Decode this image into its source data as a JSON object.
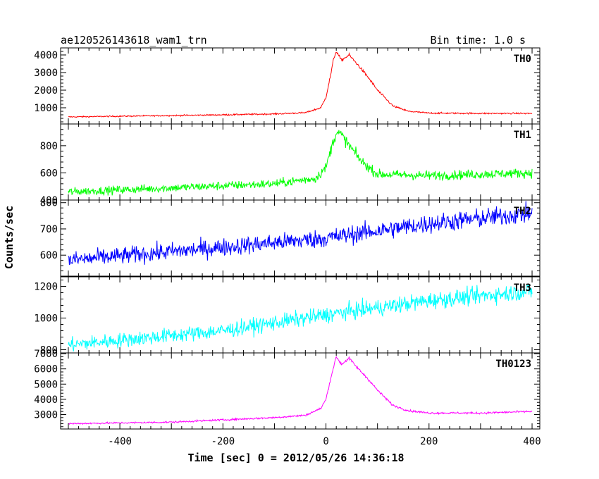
{
  "header": {
    "title": "ae120526143618_wam1_trn",
    "bin_time": "Bin time: 1.0 s"
  },
  "chart_data": {
    "type": "line",
    "xlabel": "Time [sec] 0 = 2012/05/26 14:36:18",
    "ylabel": "Counts/sec",
    "xlim": [
      -515,
      415
    ],
    "xticks": [
      -400,
      -200,
      0,
      200,
      400
    ],
    "grid": false,
    "panels": [
      {
        "name": "TH0",
        "color": "#ff0000",
        "ylim": [
          80,
          4400
        ],
        "yticks": [
          1000,
          2000,
          3000,
          4000
        ],
        "points": [
          [
            -500,
            480
          ],
          [
            -400,
            520
          ],
          [
            -300,
            560
          ],
          [
            -200,
            600
          ],
          [
            -100,
            650
          ],
          [
            -40,
            720
          ],
          [
            -10,
            1000
          ],
          [
            0,
            1600
          ],
          [
            10,
            3000
          ],
          [
            15,
            3800
          ],
          [
            20,
            4200
          ],
          [
            30,
            3700
          ],
          [
            45,
            4000
          ],
          [
            60,
            3500
          ],
          [
            80,
            2800
          ],
          [
            100,
            2000
          ],
          [
            130,
            1100
          ],
          [
            160,
            800
          ],
          [
            200,
            700
          ],
          [
            300,
            680
          ],
          [
            400,
            680
          ]
        ],
        "noise": 35
      },
      {
        "name": "TH1",
        "color": "#00ff00",
        "ylim": [
          400,
          960
        ],
        "yticks": [
          400,
          600,
          800
        ],
        "points": [
          [
            -500,
            460
          ],
          [
            -300,
            490
          ],
          [
            -100,
            520
          ],
          [
            -20,
            560
          ],
          [
            0,
            640
          ],
          [
            10,
            780
          ],
          [
            20,
            900
          ],
          [
            30,
            880
          ],
          [
            45,
            800
          ],
          [
            70,
            680
          ],
          [
            100,
            590
          ],
          [
            200,
            580
          ],
          [
            300,
            590
          ],
          [
            400,
            600
          ]
        ],
        "noise": 30
      },
      {
        "name": "TH2",
        "color": "#0000ff",
        "ylim": [
          520,
          810
        ],
        "yticks": [
          600,
          700,
          800
        ],
        "points": [
          [
            -500,
            580
          ],
          [
            -200,
            630
          ],
          [
            0,
            665
          ],
          [
            200,
            720
          ],
          [
            400,
            760
          ]
        ],
        "noise": 32
      },
      {
        "name": "TH3",
        "color": "#00ffff",
        "ylim": [
          780,
          1260
        ],
        "yticks": [
          800,
          1000,
          1200
        ],
        "points": [
          [
            -500,
            830
          ],
          [
            -200,
            920
          ],
          [
            0,
            1020
          ],
          [
            200,
            1110
          ],
          [
            400,
            1170
          ]
        ],
        "noise": 45
      },
      {
        "name": "TH0123",
        "color": "#ff00ff",
        "ylim": [
          2050,
          7050
        ],
        "yticks": [
          3000,
          4000,
          5000,
          6000,
          7000
        ],
        "points": [
          [
            -500,
            2400
          ],
          [
            -300,
            2500
          ],
          [
            -100,
            2800
          ],
          [
            -40,
            2950
          ],
          [
            -10,
            3400
          ],
          [
            0,
            4000
          ],
          [
            10,
            5500
          ],
          [
            20,
            6800
          ],
          [
            30,
            6300
          ],
          [
            45,
            6700
          ],
          [
            60,
            6100
          ],
          [
            80,
            5400
          ],
          [
            100,
            4600
          ],
          [
            130,
            3600
          ],
          [
            160,
            3250
          ],
          [
            200,
            3100
          ],
          [
            300,
            3100
          ],
          [
            400,
            3200
          ]
        ],
        "noise": 55
      }
    ]
  }
}
